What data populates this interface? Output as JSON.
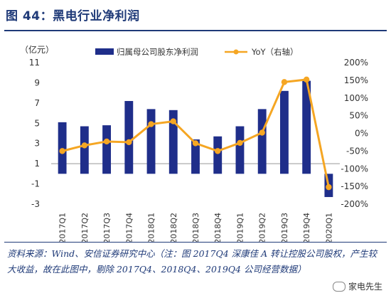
{
  "header": {
    "title": "图 44：黑电行业净利润"
  },
  "source": "资料来源：Wind、安信证券研究中心（注：图 2017Q4 深康佳 A 转让控股公司股权，产生较大收益，故在此图中，剔除 2017Q4、2018Q4、2019Q4 公司经营数据）",
  "watermark": "家电先生",
  "colors": {
    "bar": "#1f2e8a",
    "line": "#f5a623",
    "axis": "#999999",
    "text": "#333333"
  },
  "chart_data": {
    "type": "bar",
    "categories": [
      "2017Q1",
      "2017Q2",
      "2017Q3",
      "2017Q4",
      "2018Q1",
      "2018Q2",
      "2018Q3",
      "2018Q4",
      "2019Q1",
      "2019Q2",
      "2019Q3",
      "2019Q4",
      "2020Q1"
    ],
    "series": [
      {
        "name": "归属母公司股东净利润",
        "type": "bar",
        "axis": "left",
        "values": [
          5.1,
          4.7,
          4.8,
          7.2,
          6.4,
          6.3,
          3.4,
          3.7,
          4.7,
          6.4,
          8.2,
          9.2,
          -2.3
        ]
      },
      {
        "name": "YoY（右轴）",
        "type": "line",
        "axis": "right",
        "values": [
          -0.5,
          -0.34,
          -0.23,
          -0.25,
          0.26,
          0.34,
          -0.28,
          -0.5,
          -0.27,
          0.02,
          1.45,
          1.52,
          -1.52
        ]
      }
    ],
    "left_unit": "（亿元）",
    "ylim": [
      -3,
      11
    ],
    "yticks": [
      -3,
      -1,
      1,
      3,
      5,
      7,
      9,
      11
    ],
    "y2lim": [
      -2.0,
      2.0
    ],
    "y2ticks": [
      -2.0,
      -1.5,
      -1.0,
      -0.5,
      0.0,
      0.5,
      1.0,
      1.5,
      2.0
    ],
    "y2tick_labels": [
      "-200%",
      "-150%",
      "-100%",
      "-50%",
      "0%",
      "50%",
      "100%",
      "150%",
      "200%"
    ],
    "legend_position": "top"
  }
}
